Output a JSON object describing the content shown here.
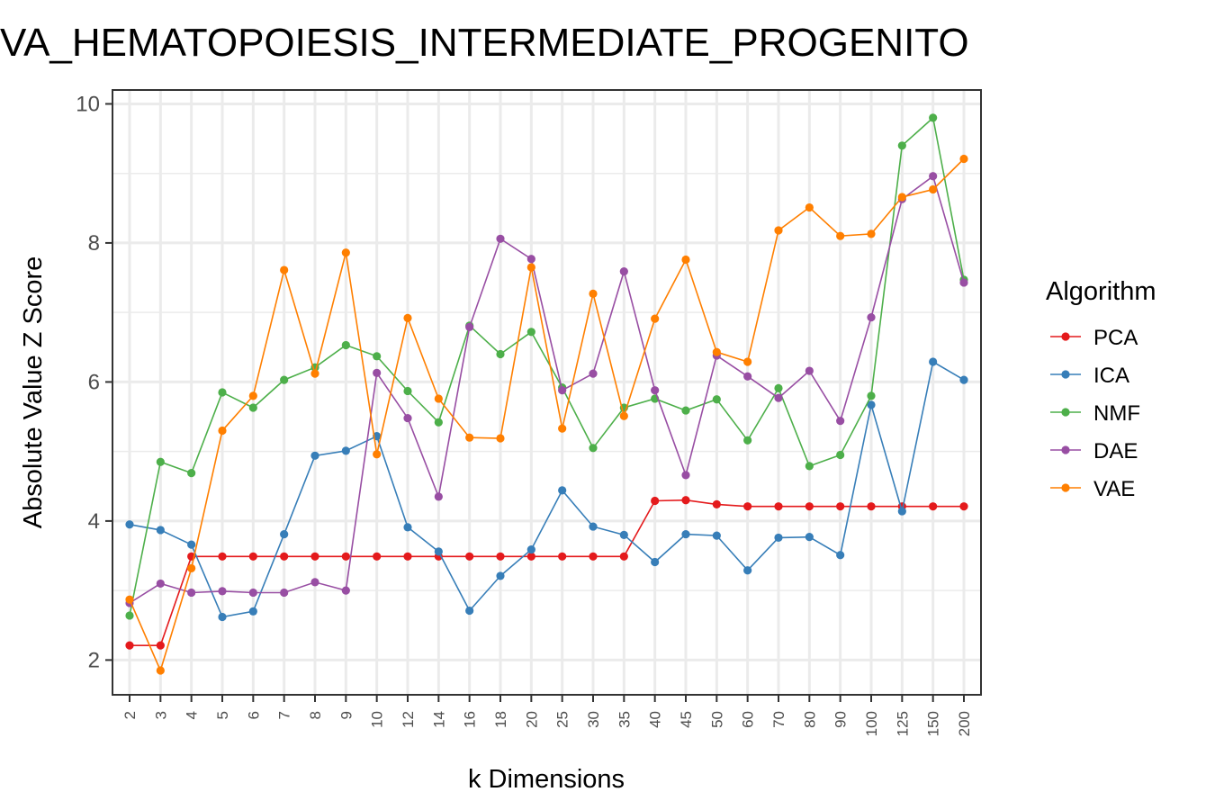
{
  "chart_data": {
    "type": "line",
    "title": "VA_HEMATOPOIESIS_INTERMEDIATE_PROGENITO",
    "xlabel": "k Dimensions",
    "ylabel": "Absolute Value Z Score",
    "ylim": [
      1.5,
      10.2
    ],
    "yticks": [
      2,
      4,
      6,
      8,
      10
    ],
    "categories": [
      "2",
      "3",
      "4",
      "5",
      "6",
      "7",
      "8",
      "9",
      "10",
      "12",
      "14",
      "16",
      "18",
      "20",
      "25",
      "30",
      "35",
      "40",
      "45",
      "50",
      "60",
      "70",
      "80",
      "90",
      "100",
      "125",
      "150",
      "200"
    ],
    "legend_title": "Algorithm",
    "legend_position": "right",
    "grid": true,
    "series": [
      {
        "name": "PCA",
        "color": "#e41a1c",
        "values": [
          2.21,
          2.21,
          3.49,
          3.49,
          3.49,
          3.49,
          3.49,
          3.49,
          3.49,
          3.49,
          3.49,
          3.49,
          3.49,
          3.49,
          3.49,
          3.49,
          3.49,
          4.29,
          4.3,
          4.24,
          4.21,
          4.21,
          4.21,
          4.21,
          4.21,
          4.21,
          4.21,
          4.21
        ]
      },
      {
        "name": "ICA",
        "color": "#377eb8",
        "values": [
          3.95,
          3.87,
          3.66,
          2.62,
          2.7,
          3.81,
          4.94,
          5.01,
          5.22,
          3.91,
          3.56,
          2.71,
          3.21,
          3.59,
          4.44,
          3.92,
          3.8,
          3.41,
          3.81,
          3.79,
          3.29,
          3.76,
          3.77,
          3.51,
          5.67,
          4.14,
          6.29,
          6.03
        ]
      },
      {
        "name": "NMF",
        "color": "#4daf4a",
        "values": [
          2.64,
          4.85,
          4.69,
          5.85,
          5.63,
          6.03,
          6.21,
          6.53,
          6.37,
          5.87,
          5.42,
          6.81,
          6.4,
          6.72,
          5.92,
          5.05,
          5.63,
          5.76,
          5.59,
          5.75,
          5.16,
          5.91,
          4.79,
          4.95,
          5.8,
          9.4,
          9.8,
          7.47
        ]
      },
      {
        "name": "DAE",
        "color": "#984ea3",
        "values": [
          2.82,
          3.1,
          2.97,
          2.99,
          2.97,
          2.97,
          3.12,
          3.0,
          6.13,
          5.48,
          4.35,
          6.79,
          8.06,
          7.77,
          5.88,
          6.12,
          7.59,
          5.88,
          4.66,
          6.38,
          6.08,
          5.77,
          6.16,
          5.44,
          6.93,
          8.63,
          8.96,
          7.43
        ]
      },
      {
        "name": "VAE",
        "color": "#ff7f00",
        "values": [
          2.87,
          1.85,
          3.32,
          5.3,
          5.8,
          7.61,
          6.12,
          7.86,
          4.96,
          6.92,
          5.76,
          5.2,
          5.19,
          7.65,
          5.33,
          7.27,
          5.51,
          6.91,
          7.76,
          6.43,
          6.29,
          8.18,
          8.51,
          8.1,
          8.13,
          8.66,
          8.77,
          9.21
        ]
      }
    ]
  }
}
